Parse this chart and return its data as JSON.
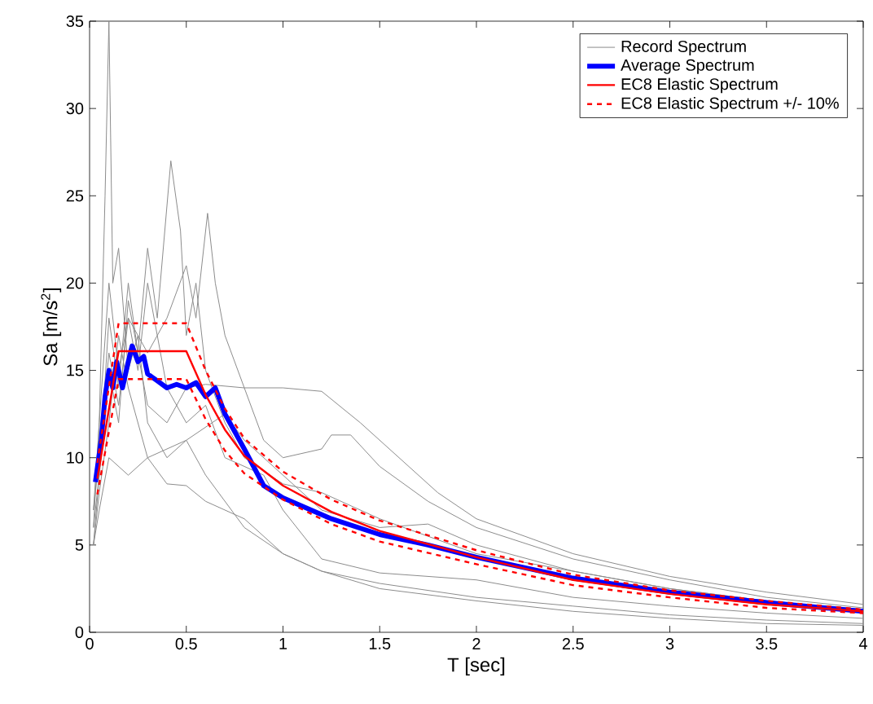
{
  "chart_data": {
    "type": "line",
    "xlabel": "T [sec]",
    "ylabel": "Sa [m/s$^{2}$]",
    "xlim": [
      0,
      4
    ],
    "ylim": [
      0,
      35
    ],
    "xticks": [
      0,
      0.5,
      1,
      1.5,
      2,
      2.5,
      3,
      3.5,
      4
    ],
    "yticks": [
      0,
      5,
      10,
      15,
      20,
      25,
      30,
      35
    ],
    "grid": false,
    "legend": "top right",
    "marker": "none",
    "series": [
      {
        "name": "Record Spectrum",
        "color": "#8c8c8c",
        "line_style": "solid",
        "x": [
          0.02,
          0.05,
          0.08,
          0.1,
          0.12,
          0.15,
          0.2,
          0.25,
          0.3,
          0.4,
          0.5,
          0.6,
          0.8,
          1.0,
          1.2,
          1.5,
          2,
          2.5,
          3,
          3.5,
          4
        ],
        "values": [
          6,
          12,
          25,
          35,
          20,
          22,
          15,
          17,
          12,
          10,
          11,
          9,
          6,
          4.5,
          3.5,
          2.8,
          2.0,
          1.5,
          1.0,
          0.7,
          0.5
        ]
      },
      {
        "color": "#8c8c8c",
        "line_style": "solid",
        "x": [
          0.02,
          0.05,
          0.1,
          0.15,
          0.2,
          0.25,
          0.3,
          0.35,
          0.42,
          0.47,
          0.5,
          0.55,
          0.6,
          0.7,
          0.8,
          1.0,
          1.2,
          1.5,
          2,
          2.5,
          3,
          3.5,
          4
        ],
        "values": [
          5,
          9,
          18,
          14,
          20,
          16,
          22,
          18,
          27,
          23,
          17,
          20,
          15,
          12,
          10,
          8.5,
          8,
          6.5,
          4.5,
          3.5,
          2.5,
          1.8,
          1.3
        ]
      },
      {
        "color": "#8c8c8c",
        "line_style": "solid",
        "x": [
          0.02,
          0.05,
          0.1,
          0.15,
          0.2,
          0.3,
          0.4,
          0.5,
          0.55,
          0.61,
          0.65,
          0.7,
          0.8,
          0.9,
          1.0,
          1.2,
          1.25,
          1.35,
          1.5,
          1.75,
          2,
          2.5,
          3,
          3.5,
          4
        ],
        "values": [
          7,
          12,
          20,
          15,
          18,
          16,
          18,
          21,
          18,
          24,
          20,
          17,
          14,
          11,
          10,
          10.5,
          11.3,
          11.3,
          9.5,
          7.5,
          6,
          4.2,
          3.0,
          2.0,
          1.4
        ]
      },
      {
        "color": "#8c8c8c",
        "line_style": "solid",
        "x": [
          0.02,
          0.06,
          0.1,
          0.15,
          0.2,
          0.3,
          0.4,
          0.5,
          0.6,
          0.8,
          1.0,
          1.2,
          1.4,
          1.6,
          1.8,
          2,
          2.5,
          3,
          3.5,
          4
        ],
        "values": [
          6,
          10,
          15,
          12,
          19,
          13,
          12,
          14,
          14.2,
          14,
          14,
          13.8,
          12,
          10,
          8,
          6.5,
          4.5,
          3.2,
          2.3,
          1.6
        ]
      },
      {
        "color": "#8c8c8c",
        "line_style": "solid",
        "x": [
          0.02,
          0.05,
          0.1,
          0.2,
          0.3,
          0.5,
          0.7,
          0.8,
          1.0,
          1.2,
          1.5,
          1.75,
          2,
          2.5,
          3,
          3.5,
          4
        ],
        "values": [
          5,
          7,
          10,
          9,
          10,
          11,
          12.5,
          11,
          9,
          7,
          6,
          6.2,
          5,
          3.5,
          2.5,
          1.8,
          1.3
        ]
      },
      {
        "color": "#8c8c8c",
        "line_style": "solid",
        "x": [
          0.02,
          0.05,
          0.1,
          0.15,
          0.2,
          0.3,
          0.4,
          0.5,
          0.6,
          0.8,
          1.0,
          1.2,
          1.5,
          2,
          2.5,
          3,
          3.5,
          4
        ],
        "values": [
          5,
          8,
          12,
          17,
          14,
          10,
          8.5,
          8.4,
          7.5,
          6.5,
          4.5,
          3.5,
          2.5,
          1.8,
          1.2,
          0.8,
          0.5,
          0.4
        ]
      },
      {
        "color": "#8c8c8c",
        "line_style": "solid",
        "x": [
          0.02,
          0.05,
          0.1,
          0.15,
          0.2,
          0.25,
          0.3,
          0.4,
          0.5,
          0.6,
          0.7,
          0.9,
          1.0,
          1.2,
          1.5,
          2,
          2.5,
          3,
          3.5,
          4
        ],
        "values": [
          7,
          10,
          16,
          13,
          18,
          15,
          20,
          14,
          12,
          13,
          10,
          9,
          7,
          4.2,
          3.4,
          3.0,
          2.0,
          1.5,
          1.1,
          0.8
        ]
      },
      {
        "name": "Average Spectrum",
        "color": "#0000ff",
        "line_style": "solid",
        "x": [
          0.03,
          0.06,
          0.08,
          0.1,
          0.12,
          0.14,
          0.17,
          0.2,
          0.22,
          0.25,
          0.28,
          0.3,
          0.35,
          0.4,
          0.45,
          0.5,
          0.55,
          0.6,
          0.65,
          0.7,
          0.8,
          0.9,
          1.0,
          1.25,
          1.5,
          1.75,
          2.0,
          2.5,
          3.0,
          3.5,
          4.0
        ],
        "values": [
          8.6,
          11,
          13.5,
          15,
          14,
          15.5,
          14,
          15.5,
          16.4,
          15.5,
          15.8,
          14.8,
          14.4,
          14,
          14.2,
          14,
          14.3,
          13.5,
          14,
          12.5,
          10.5,
          8.4,
          7.7,
          6.5,
          5.6,
          5.0,
          4.3,
          3.1,
          2.3,
          1.7,
          1.2
        ]
      },
      {
        "name": "EC8 Elastic Spectrum",
        "color": "#ff0000",
        "line_style": "solid",
        "x": [
          0.04,
          0.15,
          0.5,
          0.6,
          0.7,
          0.8,
          1.0,
          1.25,
          1.5,
          2.0,
          2.5,
          3,
          3.5,
          4
        ],
        "values": [
          8.8,
          16.1,
          16.1,
          13.6,
          11.6,
          10.1,
          8.4,
          6.9,
          5.8,
          4.3,
          3.0,
          2.2,
          1.6,
          1.2
        ]
      },
      {
        "name": "EC8 Elastic Spectrum +/- 10%",
        "color": "#ff0000",
        "line_style": "dashed",
        "x": [
          0.04,
          0.15,
          0.5,
          0.6,
          0.7,
          0.8,
          1.0,
          1.25,
          1.5,
          2.0,
          2.5,
          3,
          3.5,
          4
        ],
        "values": [
          9.7,
          17.7,
          17.7,
          15.0,
          12.8,
          11.1,
          9.2,
          7.6,
          6.4,
          4.7,
          3.3,
          2.4,
          1.8,
          1.3
        ]
      },
      {
        "color": "#ff0000",
        "line_style": "dashed",
        "x": [
          0.04,
          0.15,
          0.5,
          0.6,
          0.7,
          0.8,
          1.0,
          1.25,
          1.5,
          2.0,
          2.5,
          3,
          3.5,
          4
        ],
        "values": [
          7.9,
          14.5,
          14.5,
          12.2,
          10.4,
          9.1,
          7.6,
          6.2,
          5.2,
          3.9,
          2.7,
          2.0,
          1.4,
          1.1
        ]
      }
    ]
  }
}
